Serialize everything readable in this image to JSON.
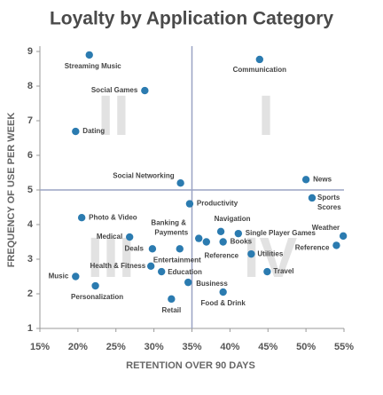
{
  "chart_data": {
    "type": "scatter",
    "title": "Loyalty by Application Category",
    "x_label": "RETENTION OVER 90 DAYS",
    "y_label": "FREQUENCY OF USE PER WEEK",
    "color": "#2b7bb0",
    "xlim": [
      15,
      55
    ],
    "ylim": [
      1,
      9
    ],
    "xticks": [
      {
        "value": 15,
        "label": "15%"
      },
      {
        "value": 20,
        "label": "20%"
      },
      {
        "value": 25,
        "label": "25%"
      },
      {
        "value": 30,
        "label": "30%"
      },
      {
        "value": 35,
        "label": "35%"
      },
      {
        "value": 40,
        "label": "40%"
      },
      {
        "value": 45,
        "label": "45%"
      },
      {
        "value": 50,
        "label": "50%"
      },
      {
        "value": 55,
        "label": "55%"
      }
    ],
    "yticks": [
      1,
      2,
      3,
      4,
      5,
      6,
      7,
      8,
      9
    ],
    "quadrant_x": 35,
    "quadrant_y": 5,
    "quadrant_labels": [
      "I",
      "II",
      "III",
      "IV"
    ],
    "labels": [
      "Streaming Music",
      "Communication",
      "Social Games",
      "Dating",
      "Social Networking",
      "News",
      "Sports Scores",
      "Productivity",
      "Photo & Video",
      "Navigation",
      "Single Player Games",
      "Weather",
      "Medical",
      "Banking & Payments",
      "Deals",
      "Entertainment",
      "Reference",
      "Books",
      "Reference",
      "Utilities",
      "Health & Fitness",
      "Education",
      "Travel",
      "Music",
      "Business",
      "Personalization",
      "Food & Drink",
      "Retail"
    ],
    "x": [
      21.5,
      43.9,
      28.8,
      19.7,
      33.5,
      50.0,
      50.8,
      34.7,
      20.5,
      38.8,
      41.1,
      54.9,
      26.8,
      35.9,
      29.8,
      33.4,
      36.9,
      39.1,
      54.0,
      42.8,
      29.6,
      31.0,
      44.9,
      19.7,
      34.5,
      22.3,
      39.1,
      32.3
    ],
    "values": [
      8.9,
      8.77,
      7.87,
      6.69,
      5.2,
      5.3,
      4.77,
      4.6,
      4.2,
      3.8,
      3.74,
      3.67,
      3.64,
      3.6,
      3.3,
      3.3,
      3.5,
      3.5,
      3.4,
      3.15,
      2.8,
      2.64,
      2.64,
      2.5,
      2.33,
      2.23,
      2.05,
      1.85
    ]
  }
}
